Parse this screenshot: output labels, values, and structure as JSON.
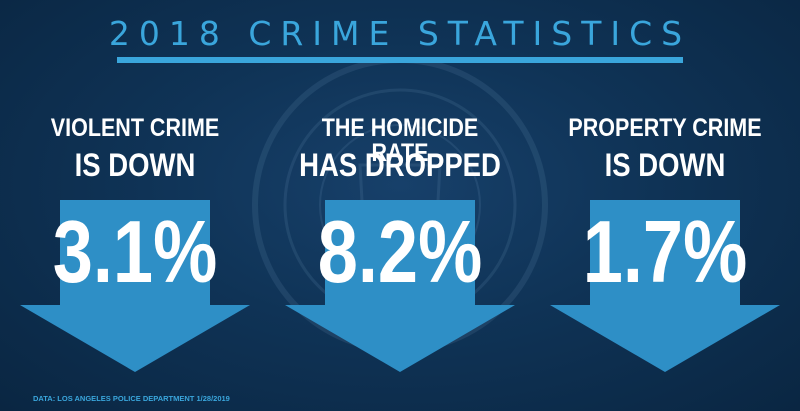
{
  "title": "2018 CRIME STATISTICS",
  "stats": [
    {
      "line1": "VIOLENT CRIME",
      "line2": "IS DOWN",
      "value": "3.1%"
    },
    {
      "line1": "THE  HOMICIDE RATE",
      "line2": "HAS DROPPED",
      "value": "8.2%"
    },
    {
      "line1": "PROPERTY CRIME",
      "line2": "IS DOWN",
      "value": "1.7%"
    }
  ],
  "source": "DATA: LOS ANGELES POLICE DEPARTMENT 1/28/2019",
  "colors": {
    "background": "#0c2c4a",
    "accent": "#3aa6dc",
    "arrow": "#2e8fc6",
    "text": "#ffffff"
  },
  "icons": {
    "background_seal": "city-seal-icon",
    "arrow": "down-arrow-icon"
  }
}
